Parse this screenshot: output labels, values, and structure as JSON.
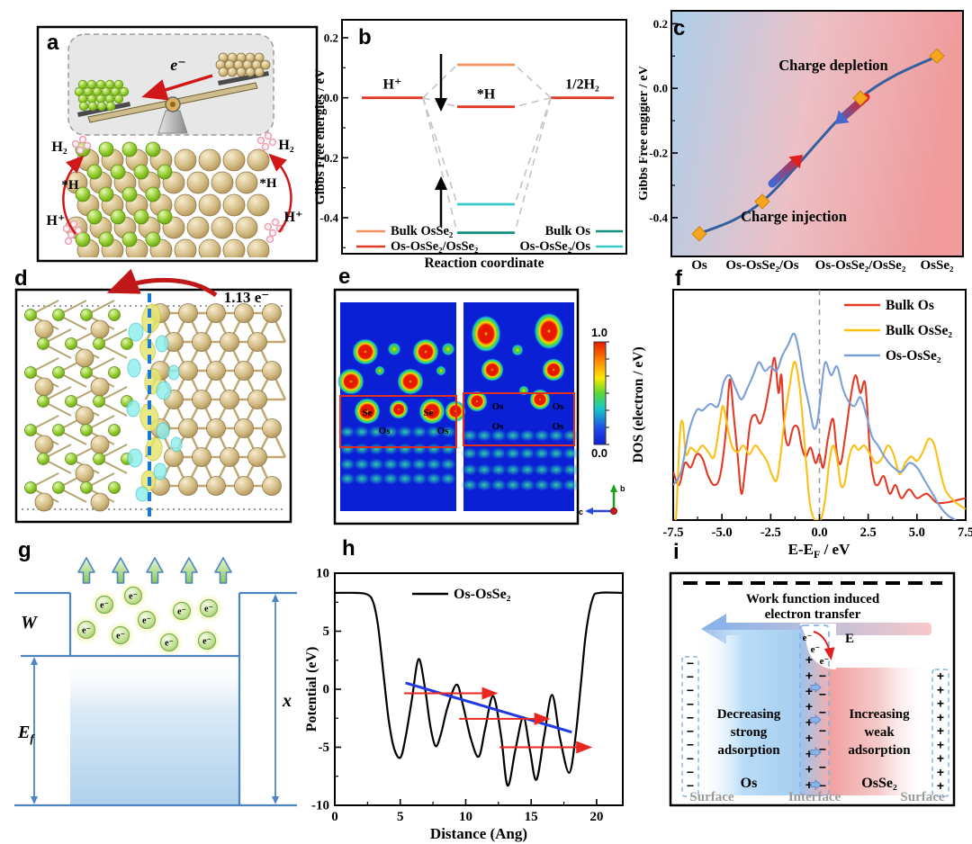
{
  "colors": {
    "red_accent": "#e23a25",
    "orange_level": "#f59061",
    "teal_level": "#12917f",
    "cyan_level": "#3bc8c8",
    "dos_red": "#e23a25",
    "dos_yellow": "#fdbf11",
    "dos_blue": "#7b9fd4",
    "curve_blue": "#33609f",
    "diamond_orange": "#f6a51f",
    "trend_blue": "#2139e0",
    "arrow_red": "#e82820",
    "scheme_blue": "#4d84c4",
    "elf_background": "#0b1fd4"
  },
  "panels": {
    "a": {
      "label": "a",
      "electron": "e⁻",
      "h2": "H₂",
      "star_h": "*H",
      "h_plus": "H⁺"
    },
    "b": {
      "label": "b"
    },
    "c": {
      "label": "c"
    },
    "d": {
      "label": "d",
      "charge_transfer": "1.13 e⁻"
    },
    "e": {
      "label": "e",
      "left_map_atoms": [
        "Se",
        "Se",
        "Os",
        "Os"
      ],
      "right_map_atoms": [
        "Os",
        "Os",
        "Os",
        "Os"
      ],
      "colorbar_max": "1.0",
      "colorbar_min": "0.0",
      "axis_b": "b",
      "axis_c": "c"
    },
    "f": {
      "label": "f"
    },
    "g": {
      "label": "g",
      "work_function": "W",
      "fermi_main": "E",
      "fermi_sub": "f",
      "height": "x",
      "electron": "e⁻",
      "electron_count": 9
    },
    "h": {
      "label": "h"
    },
    "i": {
      "label": "i",
      "title_line1": "Work function induced",
      "title_line2": "electron transfer",
      "electron": "e⁻",
      "field": "E",
      "left_lines": [
        "Decreasing",
        "strong",
        "adsorption"
      ],
      "right_lines": [
        "Increasing",
        "weak",
        "adsorption"
      ],
      "left_material": "Os",
      "right_material": "OsSe₂",
      "surface": "Surface",
      "interface": "Interface",
      "plus": "+",
      "minus": "−",
      "counts": {
        "surface_left_minus": 10,
        "interface_plus": 9,
        "interface_minus": 7,
        "surface_right_plus": 9,
        "interface_arrows": 4
      }
    }
  },
  "chart_data": [
    {
      "id": "b",
      "type": "energy-diagram",
      "ylabel": "Gibbs Free energies / eV",
      "xlabel": "Reaction coordinate",
      "ylim": [
        -0.52,
        0.26
      ],
      "yticks": [
        0.2,
        0.0,
        -0.2,
        -0.4
      ],
      "stages": [
        "H⁺",
        "*H",
        "1/2H₂"
      ],
      "endpoints": {
        "initial": 0.0,
        "final": 0.0,
        "color": "#e23a25"
      },
      "levels": [
        {
          "name": "Bulk OsSe₂",
          "value": 0.11,
          "color": "#f59061"
        },
        {
          "name": "Os-OsSe₂/OsSe₂",
          "value": -0.03,
          "color": "#e23a25"
        },
        {
          "name": "Os-OsSe₂/Os",
          "value": -0.355,
          "color": "#3bc8c8"
        },
        {
          "name": "Bulk Os",
          "value": -0.45,
          "color": "#12917f"
        }
      ],
      "legend_left": [
        "Bulk OsSe₂",
        "Os-OsSe₂/OsSe₂"
      ],
      "legend_right": [
        "Bulk Os",
        "Os-OsSe₂/Os"
      ]
    },
    {
      "id": "c",
      "type": "line",
      "ylabel": "Gibbs Free engigier / eV",
      "categories": [
        "Os",
        "Os-OsSe₂/Os",
        "Os-OsSe₂/OsSe₂",
        "OsSe₂"
      ],
      "values": [
        -0.45,
        -0.35,
        -0.03,
        0.1
      ],
      "ylim": [
        -0.52,
        0.24
      ],
      "yticks": [
        0.2,
        0.0,
        -0.2,
        -0.4
      ],
      "annotations": [
        "Charge depletion",
        "Charge injection"
      ],
      "marker": "diamond",
      "marker_color": "#f6a51f",
      "line_color": "#33609f",
      "bg_gradient": [
        "#aecfeb",
        "#ecc0c6",
        "#f09a9b"
      ]
    },
    {
      "id": "f",
      "type": "line",
      "ylabel": "DOS (electron / eV)",
      "xlabel_main": "E-E",
      "xlabel_sub": "F",
      "xlabel_suffix": " / eV",
      "xlim": [
        -7.5,
        7.5
      ],
      "ylim": [
        0,
        1.05
      ],
      "xticks": [
        -7.5,
        -5.0,
        -2.5,
        0.0,
        2.5,
        5.0,
        7.5
      ],
      "fermi_line_x": 0.0,
      "legend_position": "top-right",
      "grid": false,
      "series": [
        {
          "name": "Bulk Os",
          "color": "#e23a25",
          "x": [
            -7.5,
            -7.2,
            -6.9,
            -6.6,
            -6.3,
            -6,
            -5.7,
            -5.4,
            -5.1,
            -4.8,
            -4.6,
            -4.4,
            -4.2,
            -4,
            -3.8,
            -3.55,
            -3.3,
            -3.05,
            -2.8,
            -2.55,
            -2.3,
            -2.1,
            -1.95,
            -1.8,
            -1.6,
            -1.35,
            -1.1,
            -0.9,
            -0.7,
            -0.45,
            -0.2,
            0,
            0.2,
            0.45,
            0.7,
            0.9,
            1.1,
            1.35,
            1.6,
            1.85,
            2.1,
            2.35,
            2.6,
            2.8,
            3,
            3.3,
            3.6,
            3.9,
            4.2,
            4.6,
            5,
            5.5,
            6,
            6.5,
            7,
            7.5
          ],
          "y": [
            0.22,
            0.16,
            0.26,
            0.24,
            0.3,
            0.28,
            0.2,
            0.16,
            0.2,
            0.4,
            0.64,
            0.48,
            0.3,
            0.12,
            0.24,
            0.44,
            0.48,
            0.44,
            0.5,
            0.62,
            0.74,
            0.58,
            0.66,
            0.42,
            0.34,
            0.42,
            0.42,
            0.33,
            0.29,
            0.33,
            0.26,
            0.3,
            0.24,
            0.38,
            0.46,
            0.3,
            0.26,
            0.4,
            0.56,
            0.66,
            0.58,
            0.62,
            0.3,
            0.18,
            0.16,
            0.2,
            0.12,
            0.16,
            0.1,
            0.14,
            0.1,
            0.12,
            0.08,
            0.08,
            0.09,
            0.1
          ]
        },
        {
          "name": "Bulk OsSe₂",
          "color": "#fdbf11",
          "x": [
            -7.5,
            -7.35,
            -7.15,
            -7,
            -6.85,
            -6.6,
            -6.3,
            -6,
            -5.7,
            -5.4,
            -5.1,
            -4.95,
            -4.75,
            -4.5,
            -4.2,
            -3.9,
            -3.6,
            -3.3,
            -3,
            -2.7,
            -2.45,
            -2.2,
            -2,
            -1.8,
            -1.55,
            -1.3,
            -1.1,
            -0.9,
            -0.7,
            -0.5,
            -0.3,
            -0.1,
            0.1,
            0.3,
            0.5,
            0.7,
            0.9,
            1.1,
            1.3,
            1.5,
            1.75,
            2,
            2.3,
            2.6,
            2.9,
            3.2,
            3.5,
            3.8,
            4.1,
            4.4,
            4.7,
            5,
            5.3,
            5.6,
            5.9,
            6.2,
            6.5,
            7,
            7.5
          ],
          "y": [
            0,
            0.02,
            0.4,
            0.44,
            0.3,
            0.33,
            0.31,
            0.34,
            0.31,
            0.29,
            0.45,
            0.52,
            0.44,
            0.34,
            0.31,
            0.34,
            0.3,
            0.34,
            0.31,
            0.27,
            0.21,
            0.18,
            0.29,
            0.45,
            0.6,
            0.72,
            0.66,
            0.5,
            0.28,
            0.08,
            0.01,
            0,
            0.01,
            0.1,
            0.26,
            0.34,
            0.28,
            0.16,
            0.17,
            0.28,
            0.34,
            0.32,
            0.34,
            0.3,
            0.26,
            0.28,
            0.34,
            0.3,
            0.21,
            0.26,
            0.29,
            0.27,
            0.31,
            0.37,
            0.34,
            0.22,
            0.13,
            0.08,
            0.05
          ]
        },
        {
          "name": "Os-OsSe₂",
          "color": "#7b9fd4",
          "x": [
            -7.5,
            -7.1,
            -6.7,
            -6.3,
            -6,
            -5.6,
            -5.2,
            -4.9,
            -4.6,
            -4.3,
            -4,
            -3.7,
            -3.4,
            -3.1,
            -2.8,
            -2.5,
            -2.2,
            -1.9,
            -1.6,
            -1.3,
            -1.05,
            -0.8,
            -0.55,
            -0.3,
            -0.1,
            0.1,
            0.3,
            0.6,
            0.9,
            1.2,
            1.5,
            1.8,
            2.1,
            2.4,
            2.7,
            3,
            3.4,
            3.8,
            4.2,
            4.6,
            5,
            5.4,
            5.8,
            6.2,
            6.6,
            7
          ],
          "y": [
            0.16,
            0.22,
            0.4,
            0.5,
            0.5,
            0.53,
            0.52,
            0.63,
            0.66,
            0.6,
            0.55,
            0.6,
            0.66,
            0.72,
            0.68,
            0.7,
            0.68,
            0.75,
            0.8,
            0.85,
            0.77,
            0.63,
            0.53,
            0.42,
            0.45,
            0.6,
            0.72,
            0.66,
            0.7,
            0.6,
            0.54,
            0.52,
            0.56,
            0.48,
            0.38,
            0.34,
            0.28,
            0.24,
            0.22,
            0.26,
            0.24,
            0.18,
            0.12,
            0.06,
            0.02,
            0
          ]
        }
      ]
    },
    {
      "id": "h",
      "type": "line",
      "ylabel": "Potential (eV)",
      "xlabel": "Distance (Ang)",
      "xlim": [
        0,
        22
      ],
      "ylim": [
        -10,
        10
      ],
      "xticks": [
        0,
        5,
        10,
        15,
        20
      ],
      "yticks": [
        10,
        5,
        0,
        -5,
        -10
      ],
      "series": [
        {
          "name": "Os-OsSe₂",
          "color": "#000000",
          "x": [
            0,
            1.5,
            2.4,
            2.9,
            3.3,
            3.7,
            4.1,
            4.5,
            5,
            5.4,
            5.9,
            6.4,
            6.9,
            7.3,
            7.7,
            8.1,
            8.6,
            9.3,
            9.8,
            10.4,
            11,
            11.5,
            12.1,
            12.7,
            13.2,
            13.8,
            14.4,
            14.9,
            15.4,
            16,
            16.6,
            17.2,
            17.9,
            18.4,
            18.8,
            19.2,
            19.7,
            20.2,
            22
          ],
          "y": [
            8.3,
            8.3,
            8.2,
            7.6,
            5.5,
            1.5,
            -2.5,
            -5,
            -5.9,
            -4.2,
            -0.8,
            2.6,
            0,
            -3.2,
            -4.9,
            -3.9,
            -1.6,
            0.4,
            -1.4,
            -4.3,
            -5.8,
            -3.3,
            -0.6,
            -4,
            -8.3,
            -5.2,
            -2.4,
            -5.2,
            -7.8,
            -4,
            -0.5,
            -4.2,
            -7.2,
            -4,
            0.5,
            5,
            7.8,
            8.3,
            8.3
          ]
        }
      ],
      "trend_line": {
        "color": "#2139e0",
        "x1": 5.4,
        "y1": 0.55,
        "x2": 18.1,
        "y2": -3.7
      },
      "arrows": [
        {
          "y": -0.35,
          "x1": 5.3,
          "x2": 12.2
        },
        {
          "y": -2.55,
          "x1": 9.5,
          "x2": 16.2
        },
        {
          "y": -5.0,
          "x1": 12.6,
          "x2": 19.4
        }
      ],
      "arrow_color": "#e82820"
    }
  ]
}
